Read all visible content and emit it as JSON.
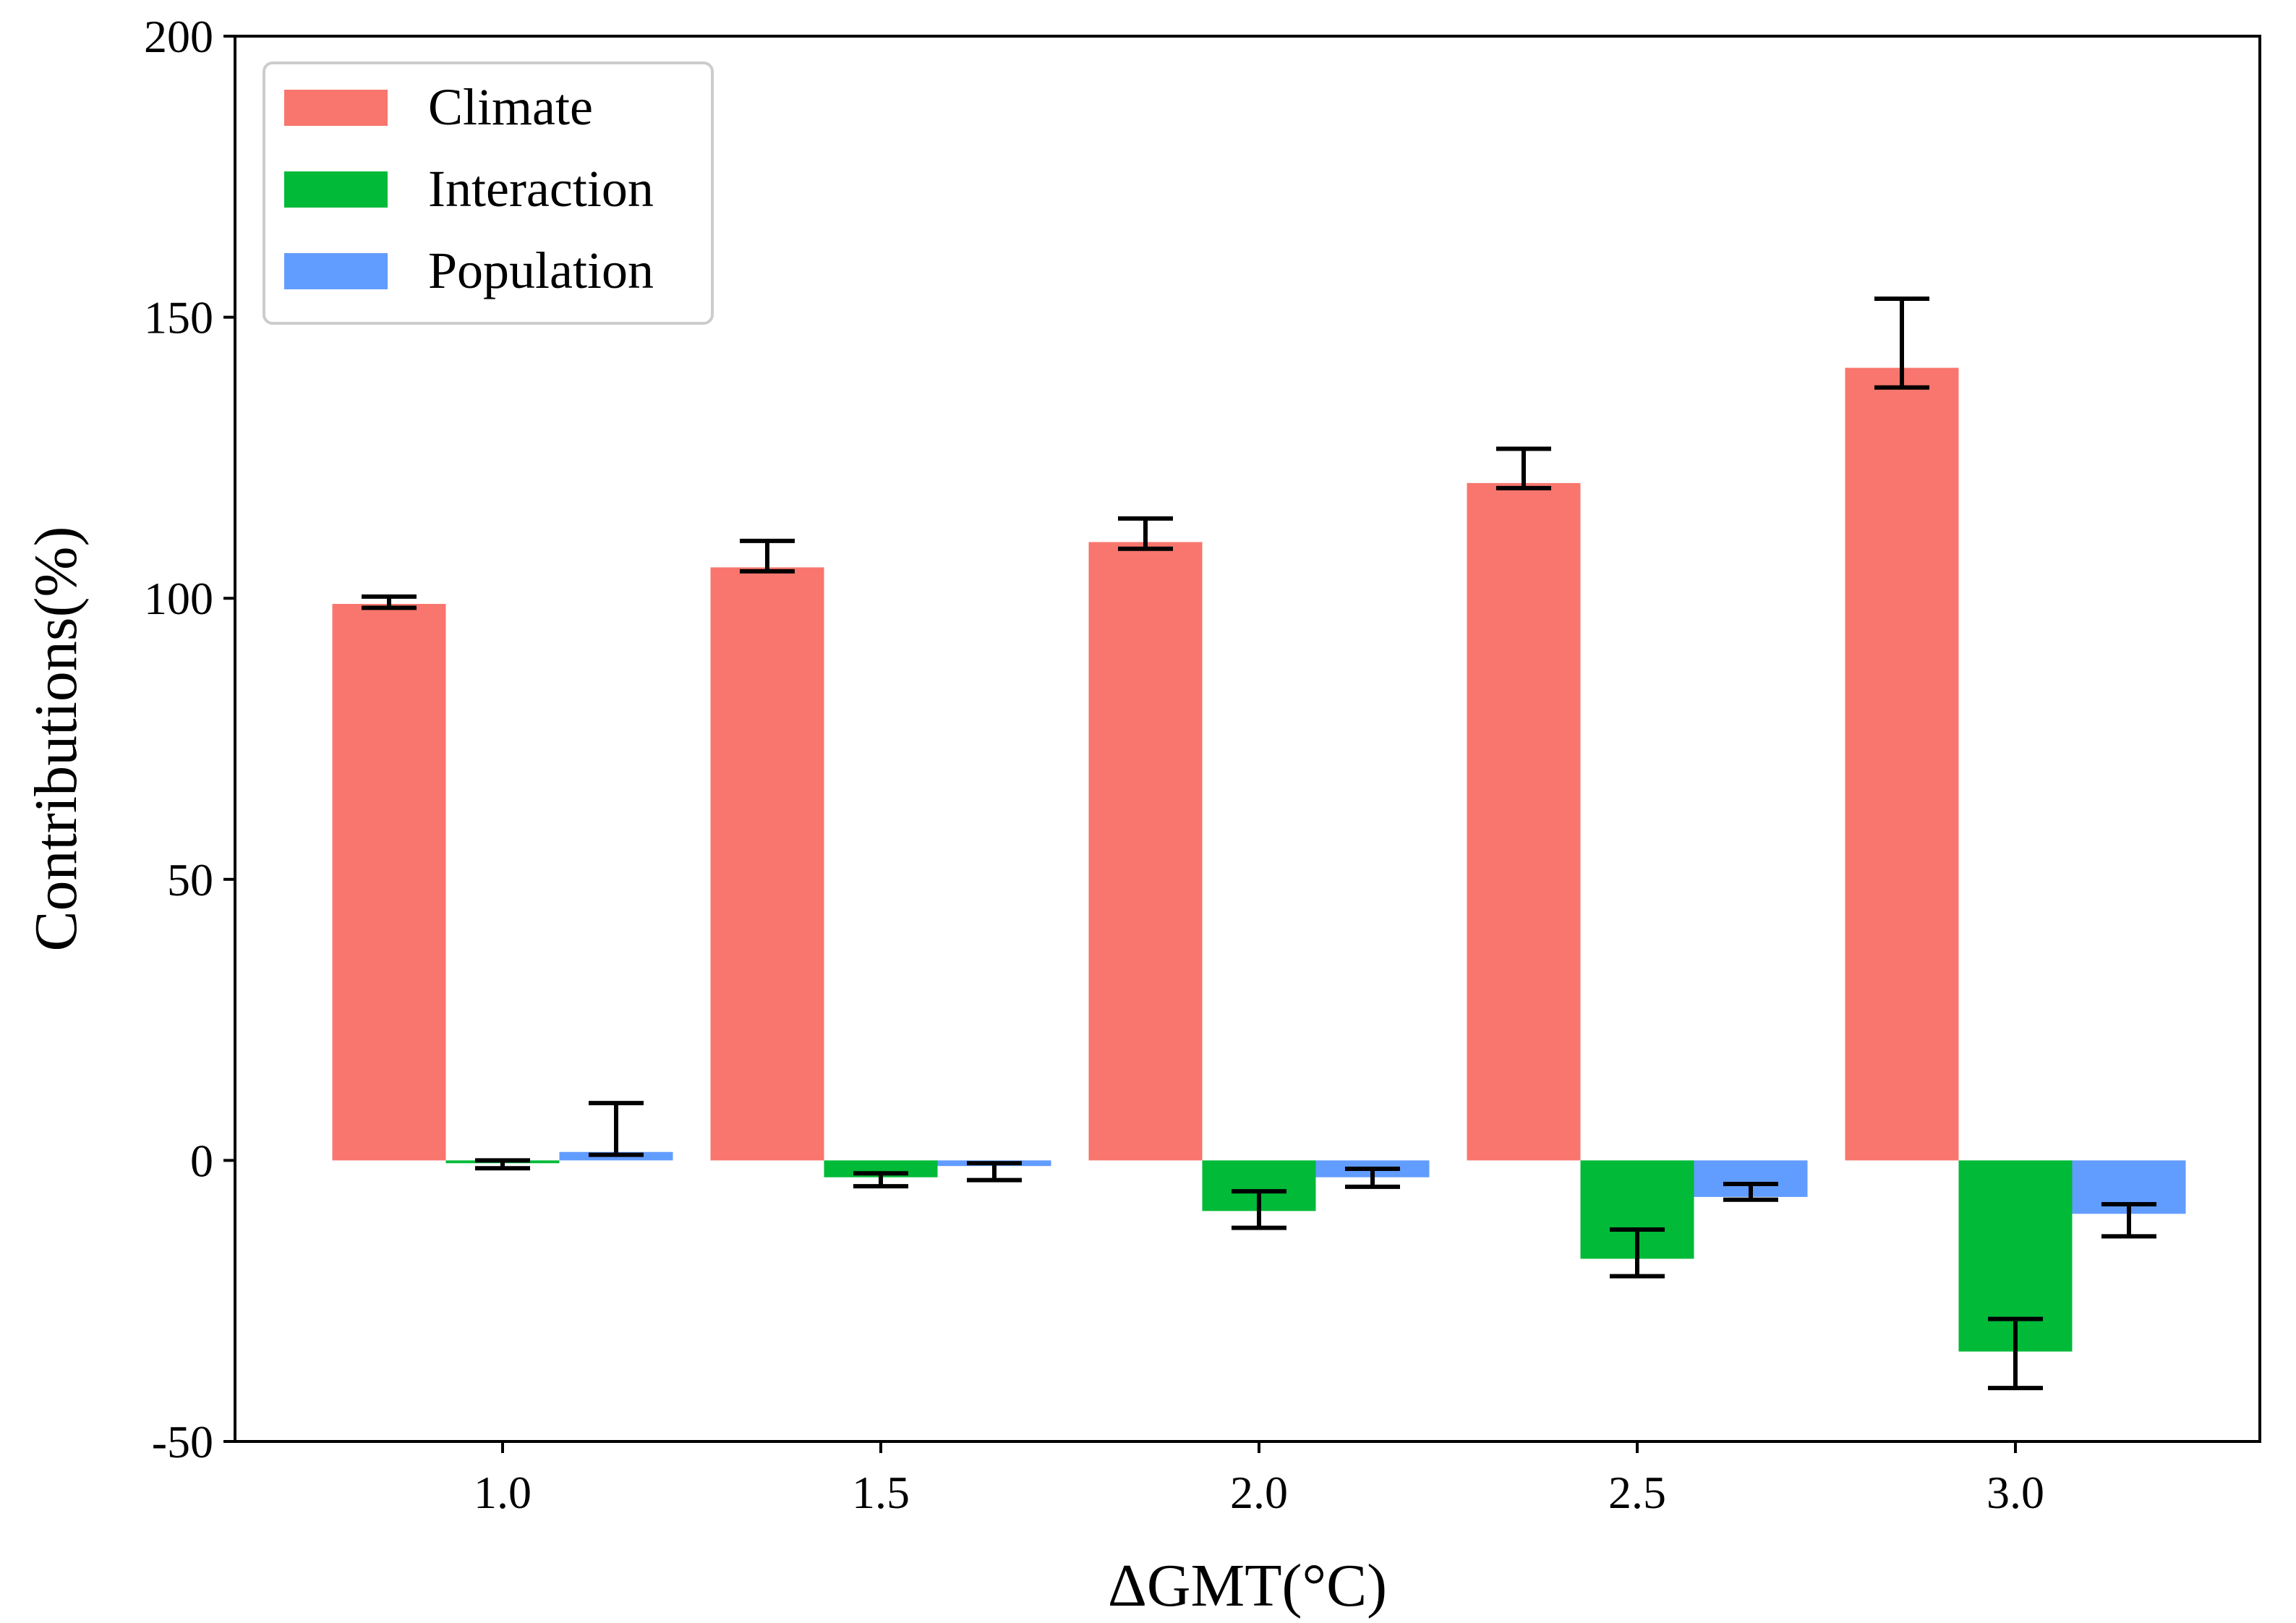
{
  "chart_data": {
    "type": "bar",
    "title": "",
    "xlabel": "ΔGMT(°C)",
    "ylabel": "Contributions(%)",
    "ylim": [
      -50,
      200
    ],
    "yticks": [
      -50,
      0,
      50,
      100,
      150,
      200
    ],
    "ytick_labels": [
      "-50",
      "0",
      "50",
      "100",
      "150",
      "200"
    ],
    "categories": [
      "1.0",
      "1.5",
      "2.0",
      "2.5",
      "3.0"
    ],
    "grid": false,
    "legend_position": "top-left",
    "series": [
      {
        "name": "Climate",
        "color": "#F8766D",
        "values": [
          99,
          105.5,
          110,
          120.5,
          141
        ],
        "err_low": [
          98.3,
          104.8,
          108.8,
          119.6,
          137.5
        ],
        "err_high": [
          100.3,
          110.2,
          114.2,
          126.6,
          153.3
        ]
      },
      {
        "name": "Interaction",
        "color": "#00BA38",
        "values": [
          -0.5,
          -3,
          -9,
          -17.5,
          -34
        ],
        "err_low": [
          -1.4,
          -4.6,
          -12,
          -20.6,
          -40.5
        ],
        "err_high": [
          0,
          -2.3,
          -5.5,
          -12.3,
          -28.2
        ]
      },
      {
        "name": "Population",
        "color": "#619CFF",
        "values": [
          1.5,
          -1,
          -3,
          -6.5,
          -9.5
        ],
        "err_low": [
          1,
          -3.5,
          -4.7,
          -7,
          -13.5
        ],
        "err_high": [
          10.2,
          -0.5,
          -1.5,
          -4.2,
          -7.8
        ]
      }
    ]
  }
}
